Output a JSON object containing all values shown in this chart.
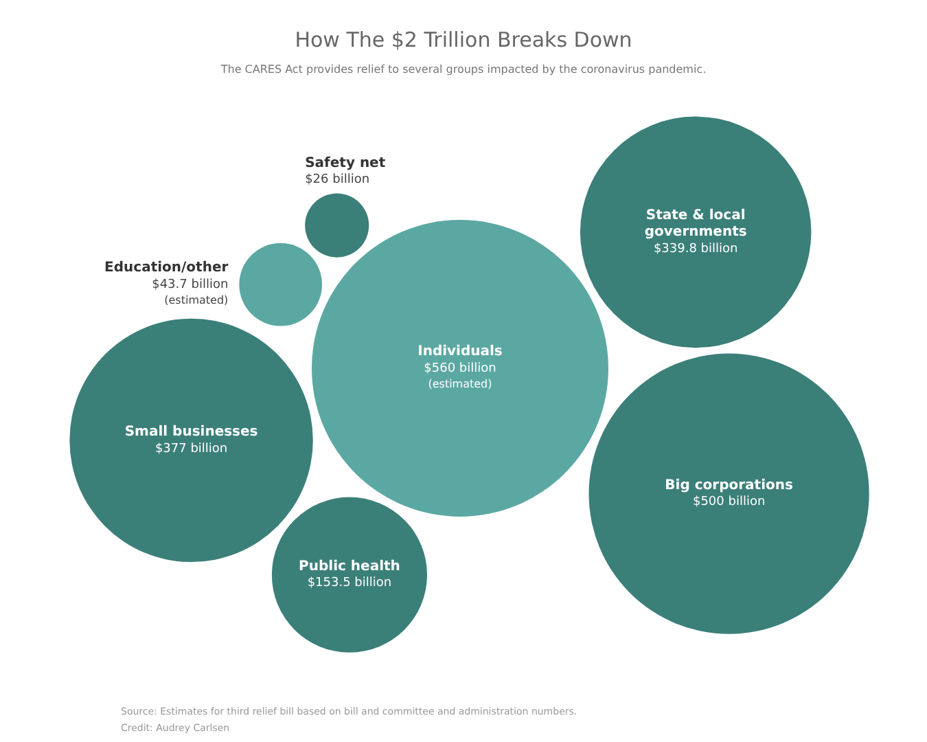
{
  "chart_data": {
    "type": "other",
    "title": "How The $2 Trillion Breaks Down",
    "subtitle": "The CARES Act provides relief to several groups impacted by the coronavirus pandemic.",
    "categories": [
      "Individuals",
      "Big corporations",
      "Small businesses",
      "State & local\ngovernments",
      "Public health",
      "Education/other",
      "Safety net"
    ],
    "values": [
      560,
      500,
      377,
      339.8,
      153.5,
      43.7,
      26
    ],
    "value_labels": [
      "$560 billion\n(estimated)",
      "$500 billion",
      "$377 billion",
      "$339.8 billion",
      "$153.5 billion",
      "$43.7 billion\n(estimated)",
      "$26 billion"
    ],
    "colors": [
      "#5ba8a2",
      "#3b7f79",
      "#3b7f79",
      "#3b7f79",
      "#3b7f79",
      "#5ba8a2",
      "#3b7f79"
    ],
    "annotations": [
      "Source: Estimates for third relief bill based on bill and committee and administration numbers.",
      "Credit: Audrey Carlsen"
    ]
  }
}
